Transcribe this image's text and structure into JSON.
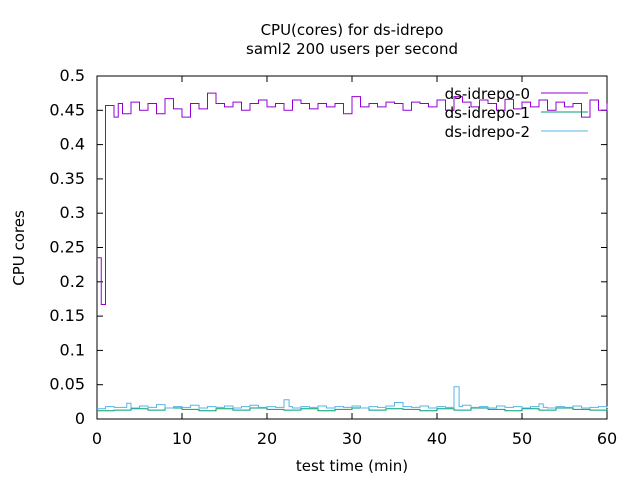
{
  "chart_data": {
    "type": "line",
    "title": "CPU(cores) for ds-idrepo",
    "subtitle": "saml2 200 users per second",
    "xlabel": "test time (min)",
    "ylabel": "CPU cores",
    "xlim": [
      0,
      60
    ],
    "ylim": [
      0,
      0.5
    ],
    "x_ticks": [
      "0",
      "10",
      "20",
      "30",
      "40",
      "50",
      "60"
    ],
    "y_ticks": [
      "0",
      "0.05",
      "0.1",
      "0.15",
      "0.2",
      "0.25",
      "0.3",
      "0.35",
      "0.4",
      "0.45",
      "0.5"
    ],
    "grid": false,
    "legend_position": "top-right",
    "series": [
      {
        "name": "ds-idrepo-0",
        "color": "#9400d3",
        "step": true,
        "points": [
          [
            0,
            0.235
          ],
          [
            0.5,
            0.167
          ],
          [
            1,
            0.457
          ],
          [
            2,
            0.44
          ],
          [
            2.5,
            0.46
          ],
          [
            3,
            0.445
          ],
          [
            4,
            0.462
          ],
          [
            5,
            0.45
          ],
          [
            6,
            0.46
          ],
          [
            7,
            0.445
          ],
          [
            8,
            0.467
          ],
          [
            9,
            0.452
          ],
          [
            10,
            0.44
          ],
          [
            11,
            0.46
          ],
          [
            12,
            0.452
          ],
          [
            13,
            0.475
          ],
          [
            14,
            0.46
          ],
          [
            15,
            0.455
          ],
          [
            16,
            0.462
          ],
          [
            17,
            0.45
          ],
          [
            18,
            0.46
          ],
          [
            19,
            0.465
          ],
          [
            20,
            0.455
          ],
          [
            21,
            0.46
          ],
          [
            22,
            0.45
          ],
          [
            23,
            0.465
          ],
          [
            24,
            0.46
          ],
          [
            25,
            0.452
          ],
          [
            26,
            0.46
          ],
          [
            27,
            0.455
          ],
          [
            28,
            0.46
          ],
          [
            29,
            0.445
          ],
          [
            30,
            0.47
          ],
          [
            31,
            0.455
          ],
          [
            32,
            0.46
          ],
          [
            33,
            0.455
          ],
          [
            34,
            0.462
          ],
          [
            35,
            0.46
          ],
          [
            36,
            0.45
          ],
          [
            37,
            0.462
          ],
          [
            38,
            0.46
          ],
          [
            39,
            0.455
          ],
          [
            40,
            0.465
          ],
          [
            41,
            0.45
          ],
          [
            42,
            0.47
          ],
          [
            43,
            0.462
          ],
          [
            44,
            0.455
          ],
          [
            45,
            0.465
          ],
          [
            46,
            0.46
          ],
          [
            47,
            0.45
          ],
          [
            48,
            0.466
          ],
          [
            49,
            0.452
          ],
          [
            50,
            0.462
          ],
          [
            51,
            0.455
          ],
          [
            52,
            0.465
          ],
          [
            53,
            0.45
          ],
          [
            54,
            0.462
          ],
          [
            55,
            0.455
          ],
          [
            56,
            0.46
          ],
          [
            57,
            0.44
          ],
          [
            58,
            0.465
          ],
          [
            59,
            0.45
          ],
          [
            60,
            0.46
          ]
        ]
      },
      {
        "name": "ds-idrepo-1",
        "color": "#009e73",
        "step": true,
        "points": [
          [
            0,
            0.012
          ],
          [
            2,
            0.013
          ],
          [
            4,
            0.015
          ],
          [
            6,
            0.013
          ],
          [
            8,
            0.016
          ],
          [
            10,
            0.014
          ],
          [
            12,
            0.012
          ],
          [
            14,
            0.015
          ],
          [
            16,
            0.013
          ],
          [
            18,
            0.016
          ],
          [
            20,
            0.014
          ],
          [
            22,
            0.013
          ],
          [
            24,
            0.015
          ],
          [
            26,
            0.012
          ],
          [
            28,
            0.014
          ],
          [
            30,
            0.016
          ],
          [
            32,
            0.013
          ],
          [
            34,
            0.015
          ],
          [
            36,
            0.014
          ],
          [
            38,
            0.012
          ],
          [
            40,
            0.015
          ],
          [
            42,
            0.013
          ],
          [
            44,
            0.016
          ],
          [
            46,
            0.014
          ],
          [
            48,
            0.012
          ],
          [
            50,
            0.015
          ],
          [
            52,
            0.013
          ],
          [
            54,
            0.016
          ],
          [
            56,
            0.014
          ],
          [
            58,
            0.013
          ],
          [
            60,
            0.014
          ]
        ]
      },
      {
        "name": "ds-idrepo-2",
        "color": "#56b4e9",
        "step": true,
        "points": [
          [
            0,
            0.015
          ],
          [
            1,
            0.018
          ],
          [
            2,
            0.017
          ],
          [
            3.5,
            0.023
          ],
          [
            4,
            0.016
          ],
          [
            5,
            0.019
          ],
          [
            6,
            0.017
          ],
          [
            7,
            0.021
          ],
          [
            8,
            0.016
          ],
          [
            9,
            0.018
          ],
          [
            10,
            0.017
          ],
          [
            11,
            0.02
          ],
          [
            12,
            0.016
          ],
          [
            13,
            0.018
          ],
          [
            14,
            0.017
          ],
          [
            15,
            0.019
          ],
          [
            16,
            0.016
          ],
          [
            17,
            0.018
          ],
          [
            18,
            0.02
          ],
          [
            19,
            0.017
          ],
          [
            20,
            0.018
          ],
          [
            21,
            0.017
          ],
          [
            22,
            0.028
          ],
          [
            22.6,
            0.018
          ],
          [
            23,
            0.016
          ],
          [
            24,
            0.018
          ],
          [
            25,
            0.017
          ],
          [
            26,
            0.019
          ],
          [
            27,
            0.016
          ],
          [
            28,
            0.018
          ],
          [
            29,
            0.017
          ],
          [
            30,
            0.019
          ],
          [
            31,
            0.016
          ],
          [
            32,
            0.018
          ],
          [
            33,
            0.017
          ],
          [
            34,
            0.019
          ],
          [
            35,
            0.024
          ],
          [
            36,
            0.018
          ],
          [
            37,
            0.017
          ],
          [
            38,
            0.019
          ],
          [
            39,
            0.016
          ],
          [
            40,
            0.018
          ],
          [
            41,
            0.017
          ],
          [
            42,
            0.047
          ],
          [
            42.6,
            0.018
          ],
          [
            43,
            0.02
          ],
          [
            44,
            0.017
          ],
          [
            45,
            0.018
          ],
          [
            46,
            0.016
          ],
          [
            47,
            0.019
          ],
          [
            48,
            0.017
          ],
          [
            49,
            0.018
          ],
          [
            50,
            0.016
          ],
          [
            51,
            0.018
          ],
          [
            52,
            0.022
          ],
          [
            52.5,
            0.017
          ],
          [
            53,
            0.016
          ],
          [
            54,
            0.018
          ],
          [
            55,
            0.017
          ],
          [
            56,
            0.019
          ],
          [
            57,
            0.016
          ],
          [
            58,
            0.017
          ],
          [
            59,
            0.018
          ],
          [
            60,
            0.016
          ]
        ]
      }
    ]
  }
}
